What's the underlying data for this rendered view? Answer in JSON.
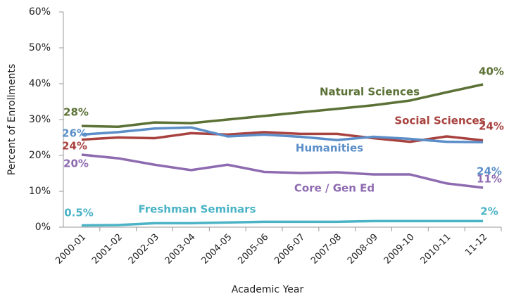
{
  "chart_data": {
    "type": "line",
    "x_label": "Academic Year",
    "y_label": "Percent of Enrollments",
    "categories": [
      "2000-01",
      "2001-02",
      "2002-03",
      "2003-04",
      "2004-05",
      "2005-06",
      "2006-07",
      "2007-08",
      "2008-09",
      "2009-10",
      "2010-11",
      "11-12"
    ],
    "ylim": [
      0,
      60
    ],
    "yticks": [
      {
        "value": 0,
        "label": "0%"
      },
      {
        "value": 10,
        "label": "10%"
      },
      {
        "value": 20,
        "label": "20%"
      },
      {
        "value": 30,
        "label": "30%"
      },
      {
        "value": 40,
        "label": "40%"
      },
      {
        "value": 50,
        "label": "50%"
      },
      {
        "value": 60,
        "label": "60%"
      }
    ],
    "grid": false,
    "series": [
      {
        "name": "Natural Sciences",
        "color": "#5b7135",
        "values": [
          28.2,
          28,
          29.2,
          29,
          30,
          31,
          32,
          33,
          34,
          35.3,
          37.6,
          39.8
        ],
        "value_labels": [
          "28%",
          null,
          null,
          null,
          null,
          null,
          null,
          null,
          null,
          null,
          null,
          "40%"
        ]
      },
      {
        "name": "Social Sciences",
        "color": "#a8423f",
        "values": [
          24.4,
          25,
          24.8,
          26.2,
          25.8,
          26.5,
          26,
          26,
          24.8,
          23.8,
          25.3,
          24.2
        ],
        "value_labels": [
          "24%",
          null,
          null,
          null,
          null,
          null,
          null,
          null,
          null,
          null,
          null,
          "24%"
        ]
      },
      {
        "name": "Humanities",
        "color": "#5b8ec8",
        "values": [
          25.8,
          26.5,
          27.5,
          27.8,
          25.3,
          25.8,
          25.2,
          24.3,
          25.2,
          24.6,
          23.8,
          23.7
        ],
        "value_labels": [
          "26%",
          null,
          null,
          null,
          null,
          null,
          null,
          null,
          null,
          null,
          null,
          "24%"
        ]
      },
      {
        "name": "Core / Gen Ed",
        "color": "#8e6bb0",
        "values": [
          20.2,
          19.2,
          17.4,
          15.9,
          17.4,
          15.4,
          15.1,
          15.3,
          14.7,
          14.7,
          12.2,
          11.0
        ],
        "value_labels": [
          "20%",
          null,
          null,
          null,
          null,
          null,
          null,
          null,
          null,
          null,
          null,
          "11%"
        ]
      },
      {
        "name": "Freshman Seminars",
        "color": "#4bb3c6",
        "values": [
          0.5,
          0.6,
          1.1,
          1.1,
          1.3,
          1.5,
          1.5,
          1.5,
          1.7,
          1.7,
          1.7,
          1.7
        ],
        "value_labels": [
          "0.5%",
          null,
          null,
          null,
          null,
          null,
          null,
          null,
          null,
          null,
          null,
          "2%"
        ]
      }
    ]
  }
}
